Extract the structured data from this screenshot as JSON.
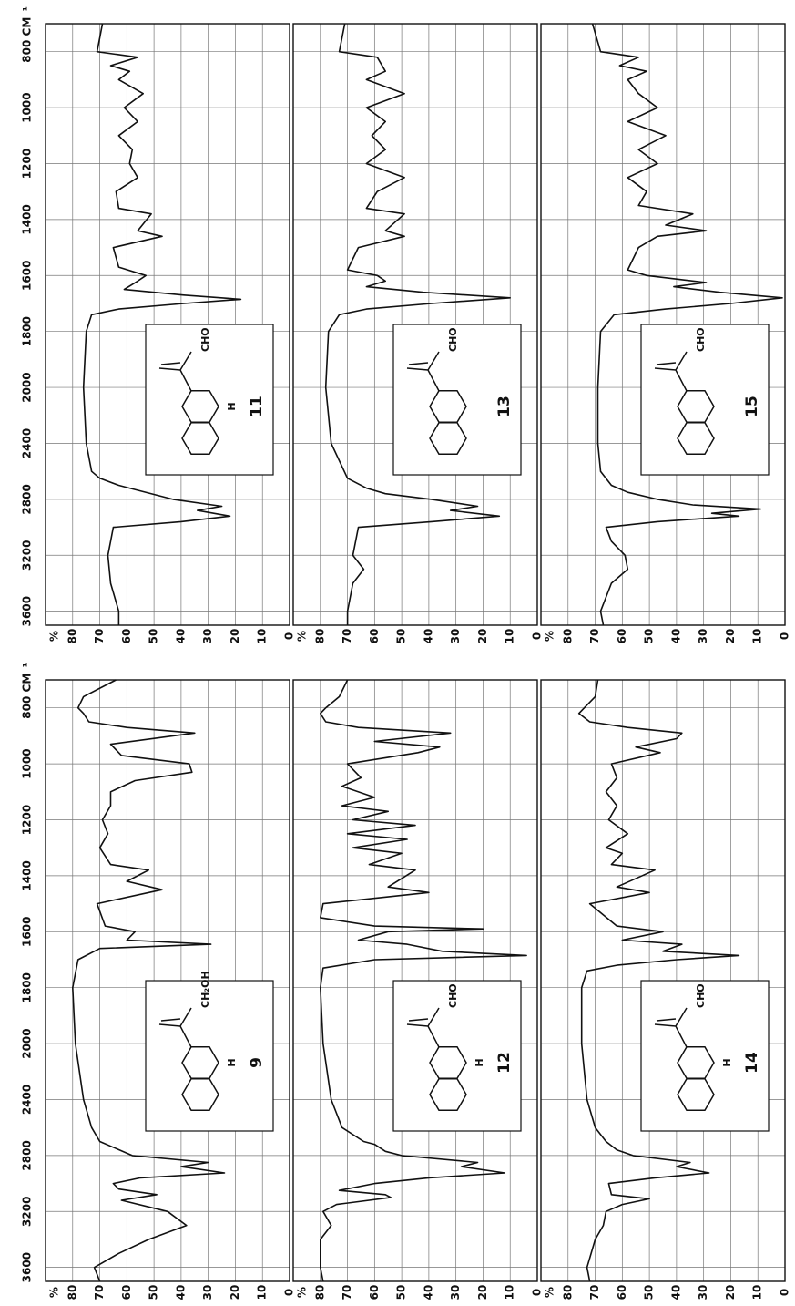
{
  "chart_data": [
    {
      "type": "line",
      "title": "11",
      "annotations": [
        "CHO",
        "H"
      ],
      "ylabel": "%",
      "color": "#111",
      "xlim": [
        3700,
        700
      ],
      "xticks": [
        3600,
        3200,
        2800,
        2400,
        2000,
        1800,
        1600,
        1400,
        1200,
        1000,
        {
          "value": 800,
          "label": "800 CM⁻¹"
        }
      ],
      "ylim": [
        0,
        90
      ],
      "yticks": [
        0,
        10,
        20,
        30,
        40,
        50,
        60,
        70,
        80
      ],
      "x": [
        3700,
        3600,
        3400,
        3200,
        3100,
        3000,
        2960,
        2920,
        2880,
        2850,
        2800,
        2720,
        2700,
        2650,
        2600,
        2400,
        2000,
        1800,
        1740,
        1720,
        1700,
        1685,
        1670,
        1650,
        1620,
        1600,
        1570,
        1500,
        1460,
        1440,
        1380,
        1360,
        1300,
        1250,
        1200,
        1150,
        1100,
        1050,
        1000,
        950,
        900,
        870,
        850,
        820,
        800,
        750,
        700
      ],
      "values": [
        63,
        63,
        66,
        67,
        66,
        65,
        40,
        22,
        34,
        25,
        43,
        59,
        63,
        70,
        73,
        75,
        76,
        75,
        73,
        63,
        39,
        18,
        39,
        61,
        56,
        53,
        63,
        65,
        47,
        56,
        51,
        63,
        64,
        56,
        59,
        58,
        63,
        56,
        61,
        54,
        63,
        59,
        66,
        56,
        71,
        70,
        69
      ]
    },
    {
      "type": "line",
      "title": "13",
      "annotations": [
        "CHO"
      ],
      "ylabel": "%",
      "color": "#111",
      "ylim": [
        0,
        90
      ],
      "yticks": [
        0,
        10,
        20,
        30,
        40,
        50,
        60,
        70,
        80
      ],
      "x": [
        3700,
        3600,
        3400,
        3300,
        3200,
        3000,
        2960,
        2920,
        2880,
        2850,
        2800,
        2760,
        2720,
        2650,
        2400,
        2000,
        1800,
        1740,
        1720,
        1700,
        1680,
        1660,
        1640,
        1620,
        1600,
        1580,
        1500,
        1460,
        1440,
        1380,
        1360,
        1300,
        1250,
        1200,
        1150,
        1100,
        1050,
        1000,
        950,
        900,
        870,
        820,
        800,
        700
      ],
      "values": [
        70,
        70,
        68,
        64,
        68,
        66,
        39,
        14,
        32,
        22,
        39,
        56,
        63,
        70,
        76,
        78,
        77,
        73,
        63,
        39,
        10,
        42,
        63,
        56,
        59,
        70,
        66,
        49,
        56,
        49,
        63,
        59,
        49,
        63,
        56,
        61,
        56,
        63,
        49,
        63,
        56,
        59,
        73,
        71
      ]
    },
    {
      "type": "line",
      "title": "15",
      "annotations": [
        "CHO"
      ],
      "ylabel": "%",
      "color": "#111",
      "ylim": [
        0,
        90
      ],
      "yticks": [
        0,
        10,
        20,
        30,
        40,
        50,
        60,
        70,
        80
      ],
      "x": [
        3700,
        3600,
        3400,
        3300,
        3200,
        3100,
        3000,
        2960,
        2920,
        2900,
        2870,
        2840,
        2800,
        2750,
        2700,
        2600,
        2400,
        2000,
        1800,
        1740,
        1720,
        1700,
        1680,
        1660,
        1640,
        1625,
        1600,
        1580,
        1500,
        1460,
        1440,
        1420,
        1380,
        1350,
        1300,
        1250,
        1200,
        1150,
        1100,
        1050,
        1000,
        950,
        900,
        870,
        850,
        820,
        800,
        700
      ],
      "values": [
        67,
        68,
        64,
        58,
        59,
        64,
        66,
        47,
        17,
        27,
        9,
        34,
        47,
        58,
        64,
        68,
        69,
        69,
        68,
        63,
        44,
        20,
        1,
        24,
        41,
        29,
        51,
        58,
        54,
        47,
        29,
        44,
        34,
        54,
        51,
        58,
        47,
        54,
        44,
        58,
        47,
        54,
        58,
        51,
        61,
        54,
        68,
        71
      ]
    },
    {
      "type": "line",
      "title": "9",
      "annotations": [
        "CH₂OH",
        "H"
      ],
      "ylabel": "%",
      "color": "#111",
      "xlim": [
        3700,
        700
      ],
      "xticks": [
        3600,
        3200,
        2800,
        2400,
        2000,
        1800,
        1600,
        1400,
        1200,
        1000,
        {
          "value": 800,
          "label": "800 CM⁻¹"
        }
      ],
      "ylim": [
        0,
        90
      ],
      "yticks": [
        0,
        10,
        20,
        30,
        40,
        50,
        60,
        70,
        80
      ],
      "x": [
        3700,
        3600,
        3500,
        3400,
        3300,
        3200,
        3120,
        3080,
        3040,
        3000,
        2960,
        2925,
        2880,
        2850,
        2800,
        2700,
        2600,
        2400,
        2000,
        1800,
        1700,
        1660,
        1645,
        1630,
        1600,
        1580,
        1500,
        1450,
        1420,
        1380,
        1360,
        1300,
        1250,
        1200,
        1150,
        1100,
        1060,
        1030,
        1000,
        970,
        930,
        890,
        870,
        850,
        820,
        800,
        760,
        700
      ],
      "values": [
        70,
        72,
        63,
        52,
        38,
        45,
        62,
        49,
        63,
        65,
        55,
        24,
        40,
        30,
        58,
        70,
        73,
        76,
        79,
        80,
        78,
        70,
        29,
        60,
        57,
        68,
        71,
        47,
        60,
        52,
        66,
        70,
        67,
        69,
        66,
        66,
        57,
        36,
        37,
        62,
        66,
        35,
        60,
        74,
        76,
        78,
        76,
        64
      ]
    },
    {
      "type": "line",
      "title": "12",
      "annotations": [
        "CHO",
        "H"
      ],
      "ylabel": "%",
      "color": "#111",
      "ylim": [
        0,
        90
      ],
      "yticks": [
        0,
        10,
        20,
        30,
        40,
        50,
        60,
        70,
        80
      ],
      "x": [
        3700,
        3600,
        3400,
        3300,
        3200,
        3150,
        3100,
        3080,
        3050,
        3000,
        2960,
        2925,
        2880,
        2850,
        2800,
        2770,
        2720,
        2700,
        2600,
        2400,
        2000,
        1800,
        1730,
        1700,
        1685,
        1670,
        1645,
        1630,
        1600,
        1590,
        1580,
        1550,
        1500,
        1460,
        1440,
        1380,
        1360,
        1320,
        1300,
        1270,
        1250,
        1220,
        1200,
        1170,
        1150,
        1120,
        1080,
        1050,
        1000,
        960,
        940,
        920,
        890,
        870,
        850,
        820,
        800,
        760,
        700
      ],
      "values": [
        79,
        80,
        80,
        76,
        79,
        74,
        54,
        56,
        73,
        60,
        40,
        12,
        28,
        22,
        50,
        56,
        60,
        64,
        72,
        76,
        79,
        80,
        79,
        60,
        4,
        35,
        48,
        66,
        55,
        20,
        60,
        80,
        79,
        40,
        55,
        45,
        62,
        50,
        68,
        48,
        70,
        45,
        68,
        55,
        72,
        60,
        72,
        65,
        70,
        44,
        36,
        60,
        32,
        66,
        78,
        80,
        78,
        73,
        70
      ]
    },
    {
      "type": "line",
      "title": "14",
      "annotations": [
        "CHO",
        "H"
      ],
      "ylabel": "%",
      "color": "#111",
      "ylim": [
        0,
        90
      ],
      "yticks": [
        0,
        10,
        20,
        30,
        40,
        50,
        60,
        70,
        80
      ],
      "x": [
        3700,
        3600,
        3400,
        3300,
        3200,
        3150,
        3110,
        3080,
        3000,
        2960,
        2925,
        2880,
        2850,
        2800,
        2760,
        2700,
        2600,
        2400,
        2000,
        1800,
        1740,
        1720,
        1700,
        1685,
        1670,
        1645,
        1630,
        1600,
        1580,
        1500,
        1460,
        1440,
        1380,
        1360,
        1320,
        1300,
        1250,
        1200,
        1150,
        1100,
        1050,
        1000,
        960,
        940,
        910,
        890,
        870,
        850,
        820,
        800,
        760,
        700
      ],
      "values": [
        72,
        73,
        70,
        67,
        66,
        60,
        50,
        64,
        65,
        48,
        28,
        40,
        35,
        56,
        62,
        66,
        70,
        73,
        75,
        75,
        73,
        62,
        40,
        17,
        45,
        38,
        60,
        45,
        62,
        72,
        50,
        62,
        48,
        64,
        60,
        66,
        58,
        65,
        62,
        66,
        62,
        64,
        46,
        55,
        40,
        38,
        58,
        72,
        76,
        74,
        70,
        69
      ]
    }
  ]
}
